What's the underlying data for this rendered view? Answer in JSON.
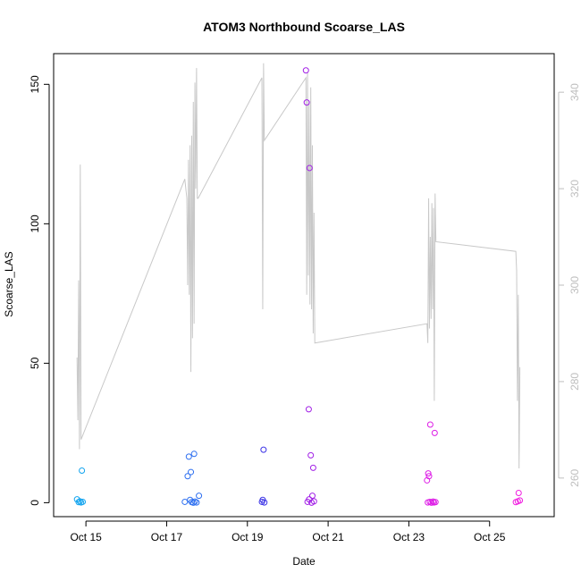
{
  "chart_data": {
    "type": "scatter",
    "title": "ATOM3 Northbound Scoarse_LAS",
    "xlabel": "Date",
    "ylabel": "Scoarse_LAS",
    "x_unit": "days, October (day-of-month as decimal)",
    "xlim": [
      14.2,
      26.6
    ],
    "ylim": [
      -5,
      161
    ],
    "y2lim": [
      252,
      348
    ],
    "x_ticks": [
      {
        "value": 15,
        "label": "Oct 15"
      },
      {
        "value": 17,
        "label": "Oct 17"
      },
      {
        "value": 19,
        "label": "Oct 19"
      },
      {
        "value": 21,
        "label": "Oct 21"
      },
      {
        "value": 23,
        "label": "Oct 23"
      },
      {
        "value": 25,
        "label": "Oct 25"
      }
    ],
    "y_ticks": [
      0,
      50,
      100,
      150
    ],
    "y2_ticks": [
      260,
      280,
      300,
      320,
      340
    ],
    "grid": false,
    "legend": "none",
    "colors": {
      "line": "#c8c8c8",
      "right_axis": "#bebebe",
      "axis": "#000000"
    },
    "series": [
      {
        "kind": "line",
        "axis": "right",
        "color": "#c8c8c8",
        "points": [
          [
            14.78,
            285
          ],
          [
            14.8,
            272
          ],
          [
            14.82,
            301
          ],
          [
            14.84,
            266
          ],
          [
            14.86,
            325
          ],
          [
            14.88,
            268
          ],
          [
            17.45,
            322
          ],
          [
            17.5,
            318
          ],
          [
            17.52,
            300
          ],
          [
            17.54,
            326
          ],
          [
            17.56,
            298
          ],
          [
            17.58,
            329
          ],
          [
            17.6,
            282
          ],
          [
            17.62,
            331
          ],
          [
            17.64,
            289
          ],
          [
            17.66,
            338
          ],
          [
            17.68,
            292
          ],
          [
            17.7,
            342
          ],
          [
            17.72,
            320
          ],
          [
            17.74,
            345
          ],
          [
            17.76,
            318
          ],
          [
            17.78,
            318
          ],
          [
            19.36,
            343
          ],
          [
            19.38,
            295
          ],
          [
            19.4,
            346
          ],
          [
            19.42,
            330
          ],
          [
            20.45,
            343
          ],
          [
            20.47,
            298
          ],
          [
            20.49,
            344
          ],
          [
            20.51,
            302
          ],
          [
            20.53,
            338
          ],
          [
            20.55,
            296
          ],
          [
            20.57,
            341
          ],
          [
            20.59,
            295
          ],
          [
            20.61,
            329
          ],
          [
            20.63,
            290
          ],
          [
            20.65,
            315
          ],
          [
            20.67,
            288
          ],
          [
            23.45,
            292
          ],
          [
            23.47,
            288
          ],
          [
            23.49,
            318
          ],
          [
            23.51,
            291
          ],
          [
            23.53,
            310
          ],
          [
            23.55,
            293
          ],
          [
            23.57,
            317
          ],
          [
            23.59,
            295
          ],
          [
            23.61,
            316
          ],
          [
            23.63,
            276
          ],
          [
            23.65,
            319
          ],
          [
            23.67,
            309
          ],
          [
            25.65,
            307
          ],
          [
            25.67,
            303
          ],
          [
            25.69,
            276
          ],
          [
            25.71,
            298
          ],
          [
            25.73,
            262
          ],
          [
            25.75,
            283
          ]
        ]
      },
      {
        "kind": "points",
        "axis": "left",
        "name": "",
        "gradient_note": "",
        "points": [
          {
            "x": 14.78,
            "y": 1.2,
            "color": "#12a4ef"
          },
          {
            "x": 14.82,
            "y": 0.2,
            "color": "#12a4ef"
          },
          {
            "x": 14.85,
            "y": 0.5,
            "color": "#12a4ef"
          },
          {
            "x": 14.88,
            "y": 0.1,
            "color": "#12a4ef"
          },
          {
            "x": 14.9,
            "y": 11.5,
            "color": "#12a4ef"
          },
          {
            "x": 14.92,
            "y": 0.3,
            "color": "#12a4ef"
          },
          {
            "x": 17.45,
            "y": 0.3,
            "color": "#2d6ff0"
          },
          {
            "x": 17.52,
            "y": 9.5,
            "color": "#2d6ff0"
          },
          {
            "x": 17.55,
            "y": 16.5,
            "color": "#2d6ff0"
          },
          {
            "x": 17.58,
            "y": 1.0,
            "color": "#2d6ff0"
          },
          {
            "x": 17.6,
            "y": 11.0,
            "color": "#2d6ff0"
          },
          {
            "x": 17.62,
            "y": 0.2,
            "color": "#2d6ff0"
          },
          {
            "x": 17.66,
            "y": 0.0,
            "color": "#2d6ff0"
          },
          {
            "x": 17.68,
            "y": 17.5,
            "color": "#2d6ff0"
          },
          {
            "x": 17.7,
            "y": 0.4,
            "color": "#2d6ff0"
          },
          {
            "x": 17.74,
            "y": 0.1,
            "color": "#2d6ff0"
          },
          {
            "x": 17.8,
            "y": 2.5,
            "color": "#2d6ff0"
          },
          {
            "x": 19.36,
            "y": 0.3,
            "color": "#3b33e6"
          },
          {
            "x": 19.38,
            "y": 1.0,
            "color": "#3b33e6"
          },
          {
            "x": 19.4,
            "y": 19.0,
            "color": "#3b33e6"
          },
          {
            "x": 19.42,
            "y": 0.1,
            "color": "#3b33e6"
          },
          {
            "x": 20.45,
            "y": 155.0,
            "color": "#a11fe6"
          },
          {
            "x": 20.47,
            "y": 143.5,
            "color": "#a11fe6"
          },
          {
            "x": 20.52,
            "y": 33.5,
            "color": "#a11fe6"
          },
          {
            "x": 20.54,
            "y": 120.0,
            "color": "#a11fe6"
          },
          {
            "x": 20.57,
            "y": 17.0,
            "color": "#a11fe6"
          },
          {
            "x": 20.61,
            "y": 2.5,
            "color": "#a11fe6"
          },
          {
            "x": 20.63,
            "y": 12.5,
            "color": "#a11fe6"
          },
          {
            "x": 20.49,
            "y": 0.3,
            "color": "#a11fe6"
          },
          {
            "x": 20.53,
            "y": 1.2,
            "color": "#a11fe6"
          },
          {
            "x": 20.59,
            "y": 0.0,
            "color": "#a11fe6"
          },
          {
            "x": 20.65,
            "y": 0.5,
            "color": "#a11fe6"
          },
          {
            "x": 23.45,
            "y": 8.0,
            "color": "#dd1ce6"
          },
          {
            "x": 23.48,
            "y": 10.5,
            "color": "#dd1ce6"
          },
          {
            "x": 23.5,
            "y": 9.5,
            "color": "#dd1ce6"
          },
          {
            "x": 23.53,
            "y": 28.0,
            "color": "#dd1ce6"
          },
          {
            "x": 23.64,
            "y": 25.0,
            "color": "#dd1ce6"
          },
          {
            "x": 23.47,
            "y": 0.1,
            "color": "#dd1ce6"
          },
          {
            "x": 23.52,
            "y": 0.3,
            "color": "#dd1ce6"
          },
          {
            "x": 23.56,
            "y": 0.0,
            "color": "#dd1ce6"
          },
          {
            "x": 23.6,
            "y": 0.4,
            "color": "#dd1ce6"
          },
          {
            "x": 23.62,
            "y": 0.1,
            "color": "#dd1ce6"
          },
          {
            "x": 23.66,
            "y": 0.2,
            "color": "#dd1ce6"
          },
          {
            "x": 25.65,
            "y": 0.2,
            "color": "#f01ee0"
          },
          {
            "x": 25.7,
            "y": 0.5,
            "color": "#f01ee0"
          },
          {
            "x": 25.72,
            "y": 3.5,
            "color": "#f01ee0"
          },
          {
            "x": 25.75,
            "y": 0.8,
            "color": "#f01ee0"
          }
        ]
      }
    ]
  }
}
